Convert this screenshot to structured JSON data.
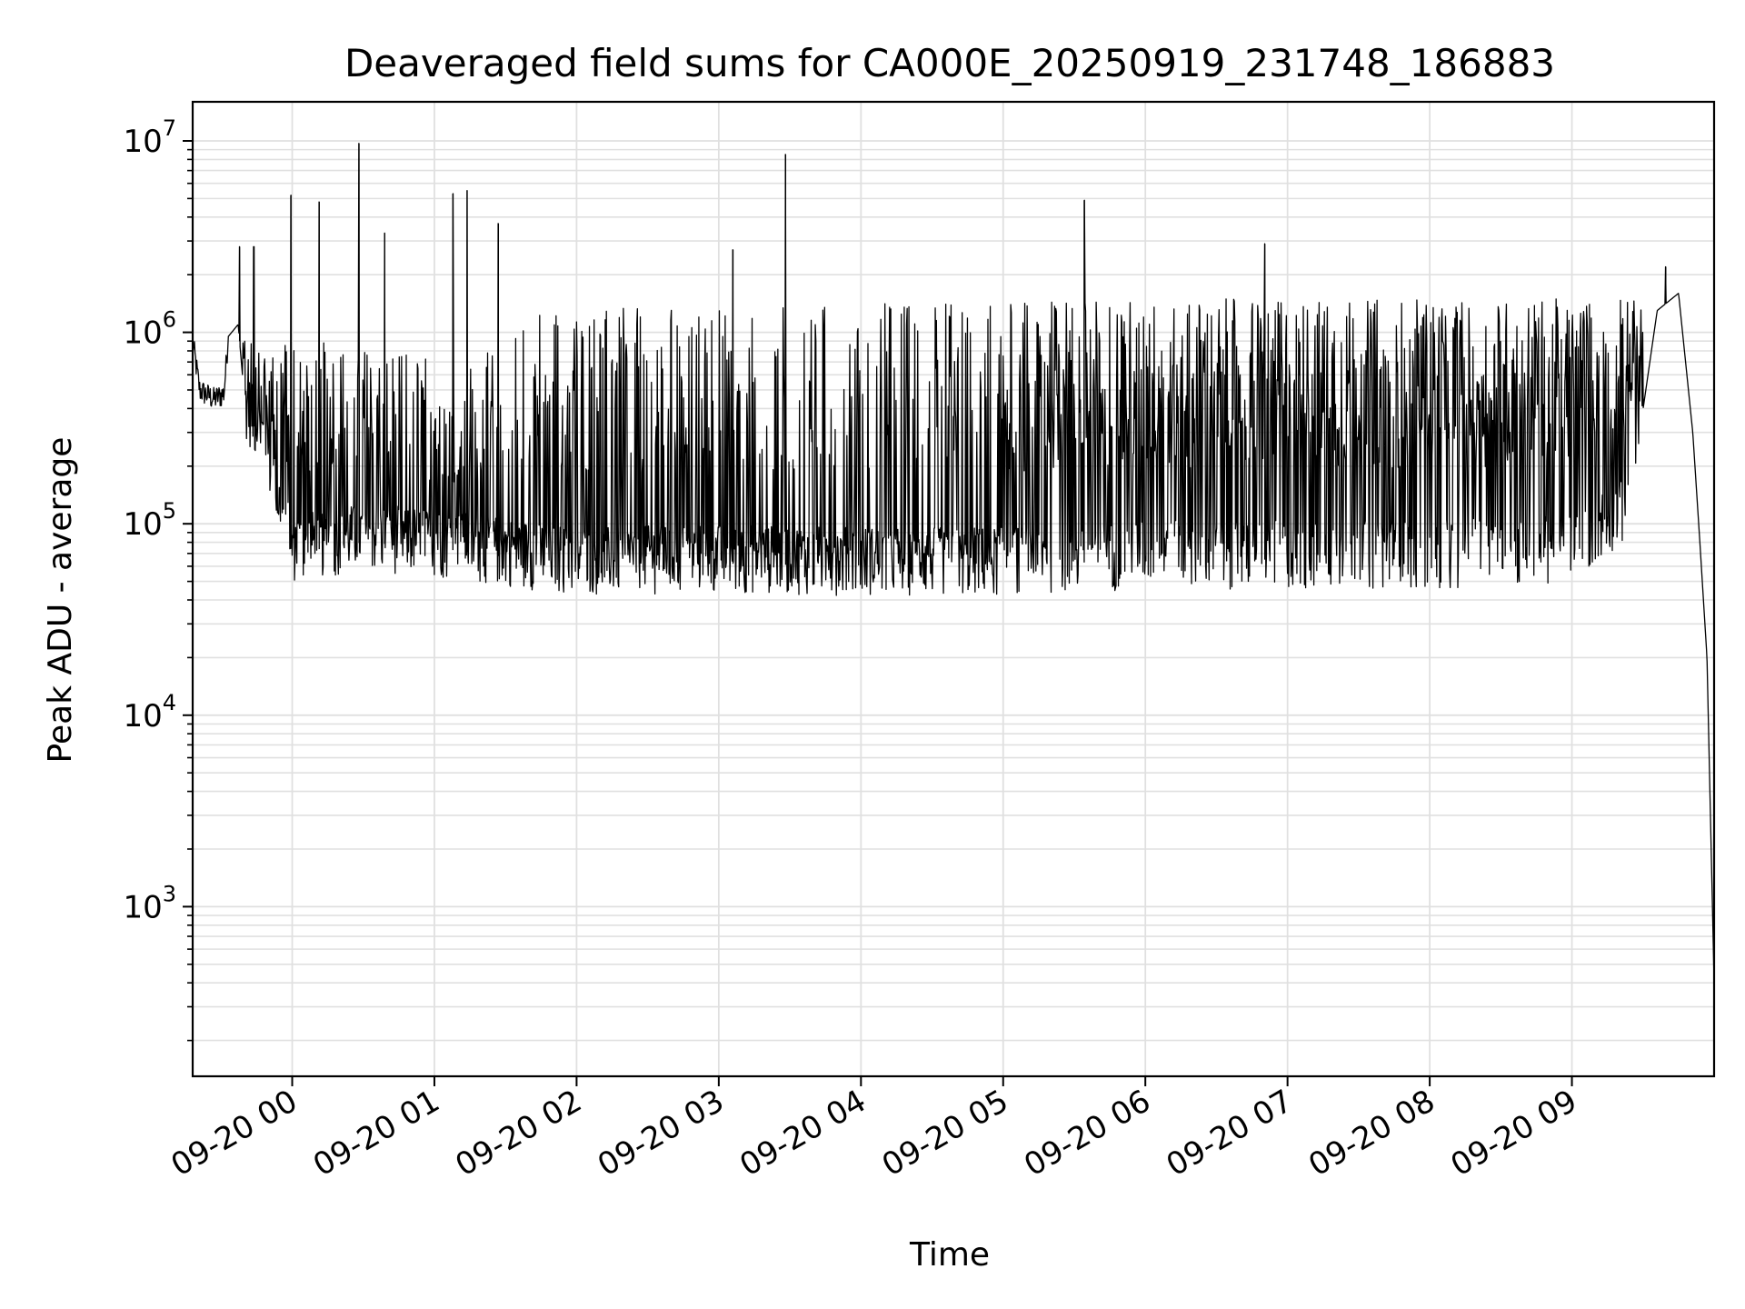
{
  "chart_data": {
    "type": "line",
    "title": "Deaveraged field sums for CA000E_20250919_231748_186883",
    "xlabel": "Time",
    "ylabel": "Peak ADU - average",
    "yscale": "log",
    "ylim": [
      130,
      16000000
    ],
    "xlim_hours": [
      -0.7,
      10.0
    ],
    "grid": true,
    "line_color": "#000000",
    "grid_color": "#e0e0e0",
    "x_ticks": [
      {
        "label": "09-20 00",
        "hour": 0
      },
      {
        "label": "09-20 01",
        "hour": 1
      },
      {
        "label": "09-20 02",
        "hour": 2
      },
      {
        "label": "09-20 03",
        "hour": 3
      },
      {
        "label": "09-20 04",
        "hour": 4
      },
      {
        "label": "09-20 05",
        "hour": 5
      },
      {
        "label": "09-20 06",
        "hour": 6
      },
      {
        "label": "09-20 07",
        "hour": 7
      },
      {
        "label": "09-20 08",
        "hour": 8
      },
      {
        "label": "09-20 09",
        "hour": 9
      }
    ],
    "y_ticks": [
      {
        "base": "10",
        "exp": "3",
        "value": 1000
      },
      {
        "base": "10",
        "exp": "4",
        "value": 10000
      },
      {
        "base": "10",
        "exp": "5",
        "value": 100000
      },
      {
        "base": "10",
        "exp": "6",
        "value": 1000000
      },
      {
        "base": "10",
        "exp": "7",
        "value": 10000000
      }
    ],
    "series": [
      {
        "name": "Peak ADU - average",
        "description_points": [
          {
            "hour": -0.7,
            "value": 900000
          },
          {
            "hour": -0.65,
            "value": 500000
          },
          {
            "hour": -0.55,
            "value": 450000
          },
          {
            "hour": -0.48,
            "value": 480000
          },
          {
            "hour": -0.45,
            "value": 950000
          },
          {
            "hour": -0.38,
            "value": 1100000
          },
          {
            "hour": -0.33,
            "value": 400000
          },
          {
            "hour": -0.2,
            "value": 250000
          },
          {
            "hour": -0.1,
            "value": 120000
          },
          {
            "hour": 0.0,
            "value": 70000
          },
          {
            "hour": 0.5,
            "value": 80000
          },
          {
            "hour": 1.0,
            "value": 75000
          },
          {
            "hour": 2.0,
            "value": 60000
          },
          {
            "hour": 3.0,
            "value": 62000
          },
          {
            "hour": 4.0,
            "value": 60000
          },
          {
            "hour": 5.0,
            "value": 60000
          },
          {
            "hour": 6.0,
            "value": 65000
          },
          {
            "hour": 7.0,
            "value": 65000
          },
          {
            "hour": 8.0,
            "value": 65000
          },
          {
            "hour": 9.0,
            "value": 70000
          },
          {
            "hour": 9.4,
            "value": 120000
          },
          {
            "hour": 9.6,
            "value": 1300000
          },
          {
            "hour": 9.75,
            "value": 1600000
          },
          {
            "hour": 9.85,
            "value": 300000
          },
          {
            "hour": 9.9,
            "value": 80000
          },
          {
            "hour": 9.95,
            "value": 20000
          },
          {
            "hour": 10.0,
            "value": 400
          }
        ],
        "upper_envelope": [
          {
            "hour": -0.3,
            "value": 1000000
          },
          {
            "hour": 1.3,
            "value": 700000
          },
          {
            "hour": 1.7,
            "value": 1300000
          },
          {
            "hour": 5.0,
            "value": 1500000
          },
          {
            "hour": 9.4,
            "value": 1500000
          }
        ],
        "spikes": [
          {
            "hour": -0.37,
            "value": 2800000
          },
          {
            "hour": -0.27,
            "value": 2800000
          },
          {
            "hour": -0.01,
            "value": 5200000
          },
          {
            "hour": 0.19,
            "value": 4800000
          },
          {
            "hour": 0.47,
            "value": 9700000
          },
          {
            "hour": 0.65,
            "value": 3300000
          },
          {
            "hour": 1.13,
            "value": 5300000
          },
          {
            "hour": 1.23,
            "value": 5500000
          },
          {
            "hour": 1.45,
            "value": 3700000
          },
          {
            "hour": 3.1,
            "value": 2700000
          },
          {
            "hour": 3.47,
            "value": 8500000
          },
          {
            "hour": 5.57,
            "value": 4900000
          },
          {
            "hour": 6.84,
            "value": 2900000
          },
          {
            "hour": 9.66,
            "value": 2200000
          }
        ]
      }
    ]
  }
}
